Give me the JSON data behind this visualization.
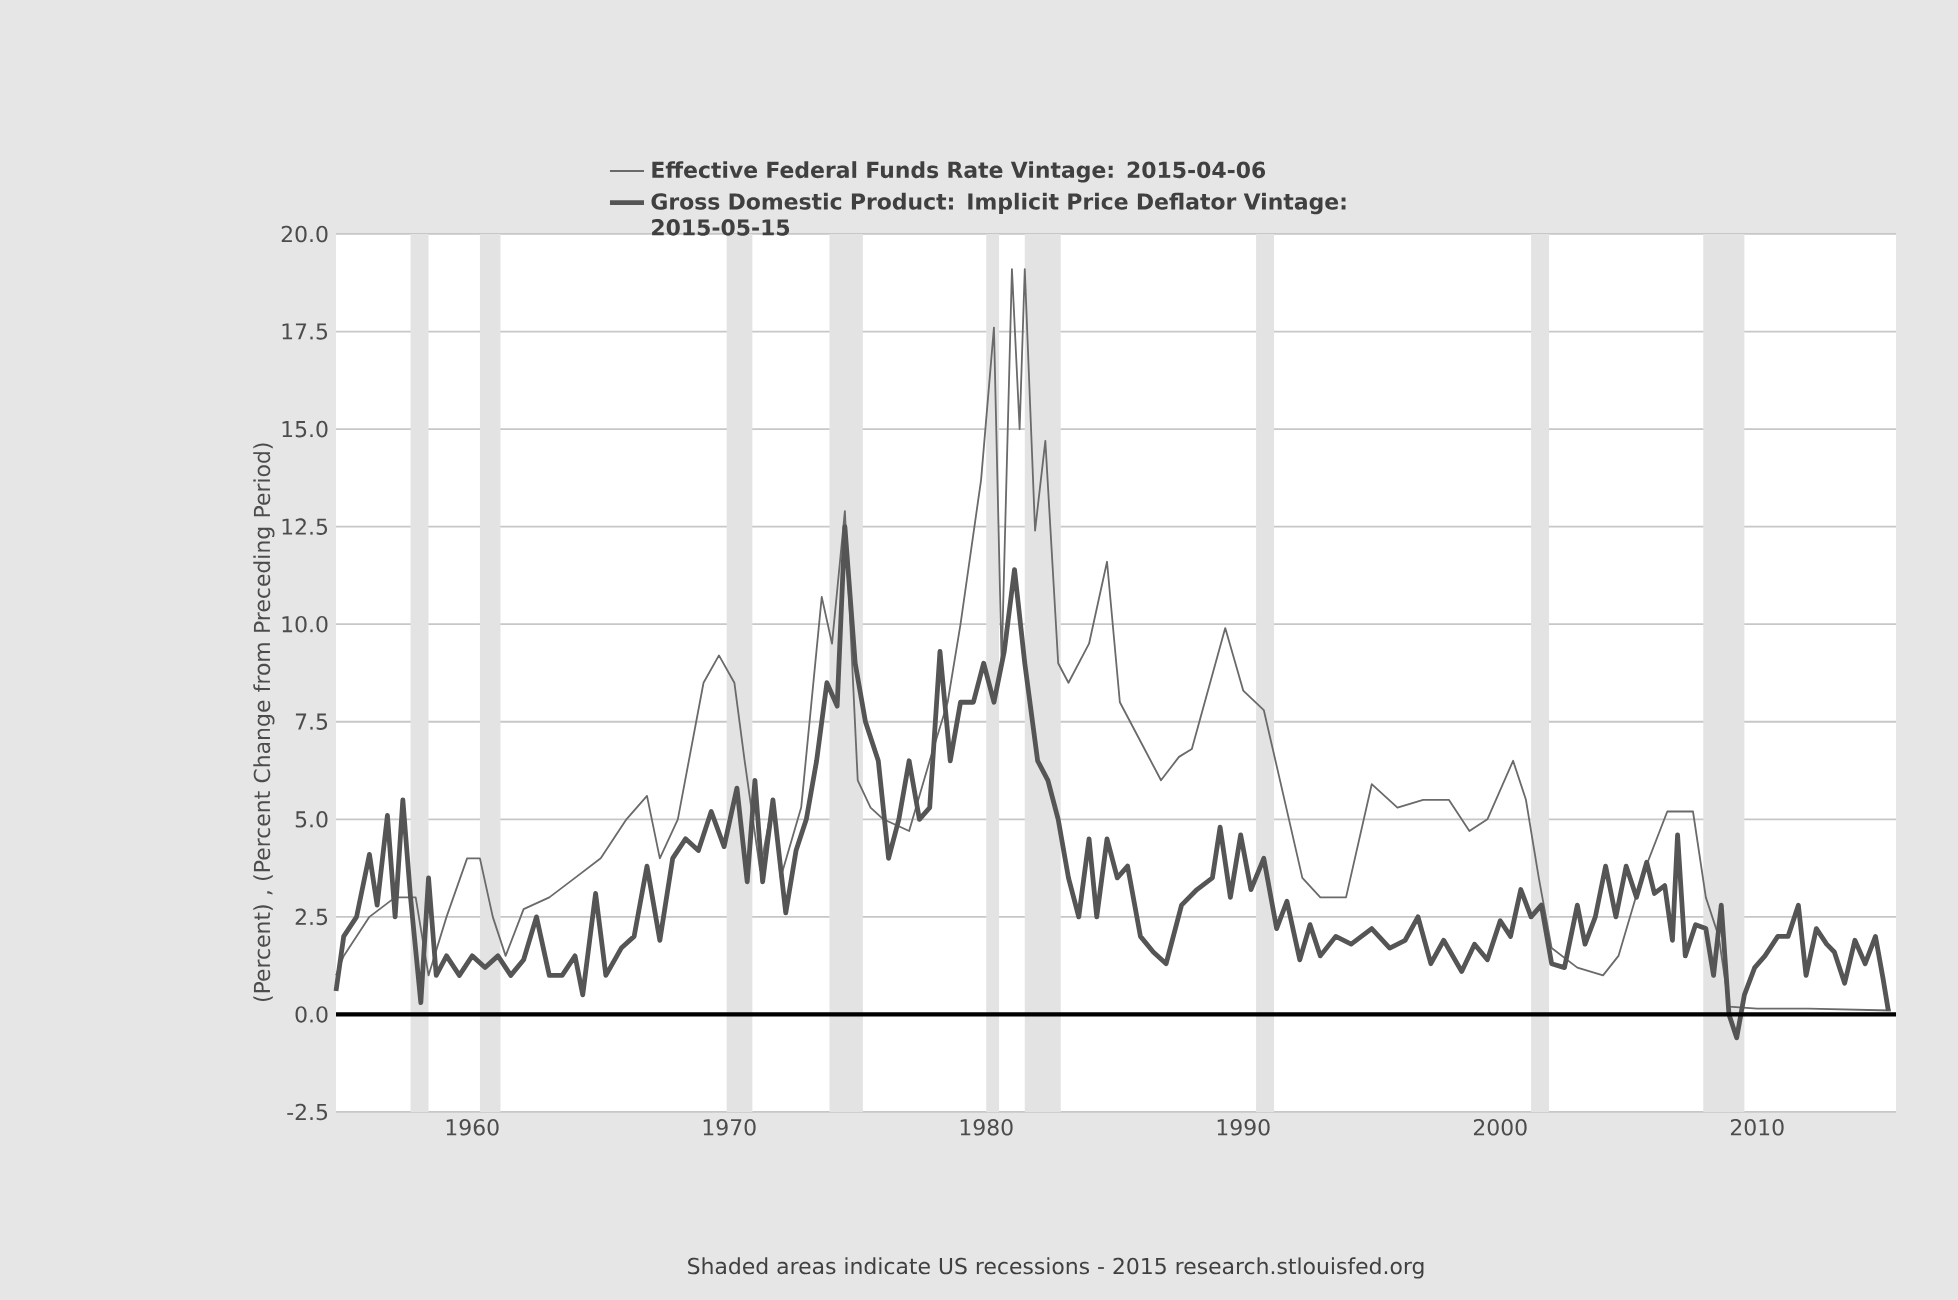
{
  "chart_data": {
    "type": "line",
    "ylabel": "(Percent) , (Percent Change from Preceding Period)",
    "annotations": [
      "Shaded areas indicate US recessions - 2015 research.stlouisfed.org"
    ],
    "xlim": [
      1954.7,
      2015.4
    ],
    "ylim": [
      -2.5,
      20
    ],
    "xticks": [
      1960,
      1970,
      1980,
      1990,
      2000,
      2010
    ],
    "yticks": [
      {
        "value": -2.5,
        "label": "-2.5"
      },
      {
        "value": 0,
        "label": "0.0"
      },
      {
        "value": 2.5,
        "label": "2.5"
      },
      {
        "value": 5,
        "label": "5.0"
      },
      {
        "value": 7.5,
        "label": "7.5"
      },
      {
        "value": 10,
        "label": "10.0"
      },
      {
        "value": 12.5,
        "label": "12.5"
      },
      {
        "value": 15,
        "label": "15.0"
      },
      {
        "value": 17.5,
        "label": "17.5"
      },
      {
        "value": 20,
        "label": "20.0"
      }
    ],
    "grid": "y",
    "legend": "top",
    "ref_lines": [
      {
        "axis": "y",
        "value": 0,
        "color": "#000000"
      }
    ],
    "bands": [
      {
        "axis": "x",
        "from": 1957.6,
        "to": 1958.3,
        "color": "#e3e3e3"
      },
      {
        "axis": "x",
        "from": 1960.3,
        "to": 1961.1,
        "color": "#e3e3e3"
      },
      {
        "axis": "x",
        "from": 1969.9,
        "to": 1970.9,
        "color": "#e3e3e3"
      },
      {
        "axis": "x",
        "from": 1973.9,
        "to": 1975.2,
        "color": "#e3e3e3"
      },
      {
        "axis": "x",
        "from": 1980.0,
        "to": 1980.5,
        "color": "#e3e3e3"
      },
      {
        "axis": "x",
        "from": 1981.5,
        "to": 1982.9,
        "color": "#e3e3e3"
      },
      {
        "axis": "x",
        "from": 1990.5,
        "to": 1991.2,
        "color": "#e3e3e3"
      },
      {
        "axis": "x",
        "from": 2001.2,
        "to": 2001.9,
        "color": "#e3e3e3"
      },
      {
        "axis": "x",
        "from": 2007.9,
        "to": 2009.5,
        "color": "#e3e3e3"
      }
    ],
    "series": [
      {
        "name": "Effective Federal Funds Rate Vintage: 2015-04-06",
        "color": "#6a6a6a",
        "x": [
          1954.7,
          1955,
          1956,
          1957,
          1957.8,
          1958.3,
          1959,
          1959.8,
          1960.3,
          1960.8,
          1961.3,
          1962,
          1963,
          1964,
          1965,
          1966,
          1966.8,
          1967.3,
          1968,
          1969,
          1969.6,
          1970.2,
          1970.6,
          1971.2,
          1971.7,
          1972,
          1972.8,
          1973.6,
          1974,
          1974.5,
          1975,
          1975.5,
          1976,
          1977,
          1977.8,
          1978.5,
          1979,
          1979.8,
          1980.3,
          1980.6,
          1981,
          1981.3,
          1981.5,
          1981.9,
          1982.3,
          1982.8,
          1983.2,
          1984,
          1984.7,
          1985.2,
          1986,
          1986.8,
          1987.5,
          1988,
          1989.3,
          1990,
          1990.8,
          1991.5,
          1992.3,
          1993,
          1994,
          1995,
          1996,
          1997,
          1998,
          1998.8,
          1999.5,
          2000.5,
          2001,
          2001.5,
          2002,
          2003,
          2004,
          2004.6,
          2005.5,
          2006.5,
          2007.5,
          2008,
          2008.5,
          2008.9,
          2010,
          2012,
          2015.2
        ],
        "values": [
          1.0,
          1.5,
          2.5,
          3.0,
          3.0,
          1.0,
          2.5,
          4.0,
          4.0,
          2.5,
          1.5,
          2.7,
          3.0,
          3.5,
          4.0,
          5.0,
          5.6,
          4.0,
          5.0,
          8.5,
          9.2,
          8.5,
          6.5,
          3.7,
          5.5,
          3.5,
          5.3,
          10.7,
          9.5,
          12.9,
          6.0,
          5.3,
          5.0,
          4.7,
          6.5,
          8.0,
          10.0,
          13.7,
          17.6,
          9.0,
          19.1,
          15.0,
          19.1,
          12.4,
          14.7,
          9.0,
          8.5,
          9.5,
          11.6,
          8.0,
          7.0,
          6.0,
          6.6,
          6.8,
          9.9,
          8.3,
          7.8,
          5.8,
          3.5,
          3.0,
          3.0,
          5.9,
          5.3,
          5.5,
          5.5,
          4.7,
          5.0,
          6.5,
          5.5,
          3.5,
          1.7,
          1.2,
          1.0,
          1.5,
          3.5,
          5.2,
          5.2,
          3.0,
          2.0,
          0.2,
          0.15,
          0.15,
          0.1
        ]
      },
      {
        "name": "Gross Domestic Product: Implicit Price Deflator Vintage: 2015-05-15",
        "color": "#555555",
        "x": [
          1954.7,
          1955,
          1955.5,
          1956,
          1956.3,
          1956.7,
          1957,
          1957.3,
          1957.6,
          1958,
          1958.3,
          1958.6,
          1959,
          1959.5,
          1960,
          1960.5,
          1961,
          1961.5,
          1962,
          1962.5,
          1963,
          1963.5,
          1964,
          1964.3,
          1964.8,
          1965.2,
          1965.8,
          1966.3,
          1966.8,
          1967.3,
          1967.8,
          1968.3,
          1968.8,
          1969.3,
          1969.8,
          1970.3,
          1970.7,
          1971,
          1971.3,
          1971.7,
          1972.2,
          1972.6,
          1973,
          1973.4,
          1973.8,
          1974.2,
          1974.5,
          1974.9,
          1975.3,
          1975.8,
          1976.2,
          1976.6,
          1977,
          1977.4,
          1977.8,
          1978.2,
          1978.6,
          1979,
          1979.5,
          1979.9,
          1980.3,
          1980.7,
          1981.1,
          1981.5,
          1982,
          1982.4,
          1982.8,
          1983.2,
          1983.6,
          1984,
          1984.3,
          1984.7,
          1985.1,
          1985.5,
          1986,
          1986.5,
          1987,
          1987.6,
          1988.2,
          1988.8,
          1989.1,
          1989.5,
          1989.9,
          1990.3,
          1990.8,
          1991.3,
          1991.7,
          1992.2,
          1992.6,
          1993,
          1993.6,
          1994.2,
          1995,
          1995.7,
          1996.3,
          1996.8,
          1997.3,
          1997.8,
          1998.5,
          1999,
          1999.5,
          2000,
          2000.4,
          2000.8,
          2001.2,
          2001.6,
          2002,
          2002.5,
          2003,
          2003.3,
          2003.7,
          2004.1,
          2004.5,
          2004.9,
          2005.3,
          2005.7,
          2006,
          2006.4,
          2006.7,
          2006.9,
          2007.2,
          2007.6,
          2008,
          2008.3,
          2008.6,
          2008.9,
          2009.2,
          2009.5,
          2009.9,
          2010.3,
          2010.8,
          2011.2,
          2011.6,
          2011.9,
          2012.3,
          2012.7,
          2013,
          2013.4,
          2013.8,
          2014.2,
          2014.6,
          2014.9,
          2015.1
        ],
        "values": [
          0.6,
          2.0,
          2.5,
          4.1,
          2.8,
          5.1,
          2.5,
          5.5,
          3.0,
          0.3,
          3.5,
          1.0,
          1.5,
          1.0,
          1.5,
          1.2,
          1.5,
          1.0,
          1.4,
          2.5,
          1.0,
          1.0,
          1.5,
          0.5,
          3.1,
          1.0,
          1.7,
          2.0,
          3.8,
          1.9,
          4.0,
          4.5,
          4.2,
          5.2,
          4.3,
          5.8,
          3.4,
          6.0,
          3.4,
          5.5,
          2.6,
          4.2,
          5.0,
          6.5,
          8.5,
          7.9,
          12.5,
          9.0,
          7.5,
          6.5,
          4.0,
          5.0,
          6.5,
          5.0,
          5.3,
          9.3,
          6.5,
          8.0,
          8.0,
          9.0,
          8.0,
          9.3,
          11.4,
          9.0,
          6.5,
          6.0,
          5.0,
          3.5,
          2.5,
          4.5,
          2.5,
          4.5,
          3.5,
          3.8,
          2.0,
          1.6,
          1.3,
          2.8,
          3.2,
          3.5,
          4.8,
          3.0,
          4.6,
          3.2,
          4.0,
          2.2,
          2.9,
          1.4,
          2.3,
          1.5,
          2.0,
          1.8,
          2.2,
          1.7,
          1.9,
          2.5,
          1.3,
          1.9,
          1.1,
          1.8,
          1.4,
          2.4,
          2.0,
          3.2,
          2.5,
          2.8,
          1.3,
          1.2,
          2.8,
          1.8,
          2.5,
          3.8,
          2.5,
          3.8,
          3.0,
          3.9,
          3.1,
          3.3,
          1.9,
          4.6,
          1.5,
          2.3,
          2.2,
          1.0,
          2.8,
          0.0,
          -0.6,
          0.5,
          1.2,
          1.5,
          2.0,
          2.0,
          2.8,
          1.0,
          2.2,
          1.8,
          1.6,
          0.8,
          1.9,
          1.3,
          2.0,
          0.9,
          0.1
        ]
      }
    ]
  }
}
